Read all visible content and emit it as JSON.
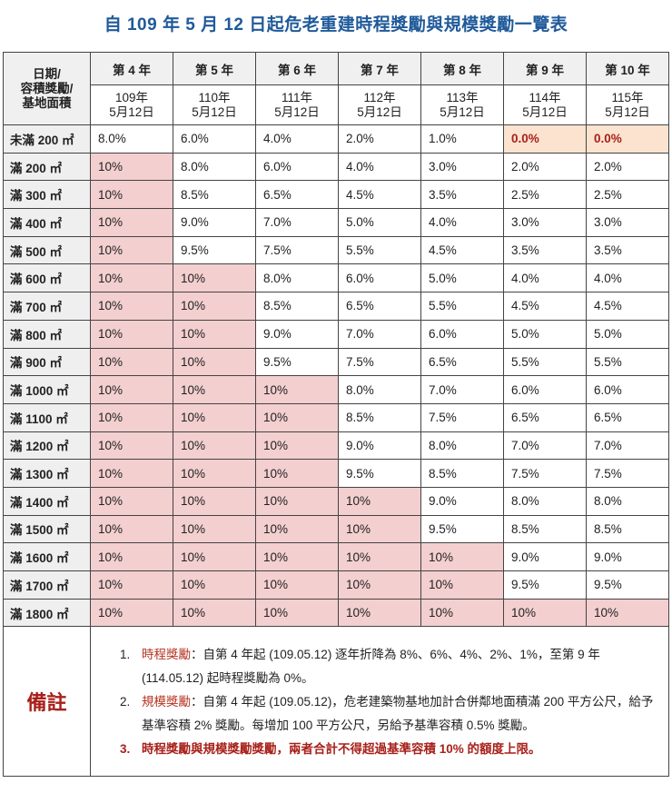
{
  "title": "自 109 年 5 月 12 日起危老重建時程獎勵與規模獎勵一覽表",
  "header": {
    "corner_lines": [
      "日期/",
      "容積獎勵/",
      "基地面積"
    ],
    "years": [
      "第 4 年",
      "第 5 年",
      "第 6 年",
      "第 7 年",
      "第 8 年",
      "第 9 年",
      "第 10 年"
    ],
    "dates": [
      [
        "109年",
        "5月12日"
      ],
      [
        "110年",
        "5月12日"
      ],
      [
        "111年",
        "5月12日"
      ],
      [
        "112年",
        "5月12日"
      ],
      [
        "113年",
        "5月12日"
      ],
      [
        "114年",
        "5月12日"
      ],
      [
        "115年",
        "5月12日"
      ]
    ]
  },
  "rows": [
    {
      "label": "未滿 200 ㎡",
      "values": [
        "8.0%",
        "6.0%",
        "4.0%",
        "2.0%",
        "1.0%",
        "0.0%",
        "0.0%"
      ]
    },
    {
      "label": "滿 200 ㎡",
      "values": [
        "10%",
        "8.0%",
        "6.0%",
        "4.0%",
        "3.0%",
        "2.0%",
        "2.0%"
      ]
    },
    {
      "label": "滿 300 ㎡",
      "values": [
        "10%",
        "8.5%",
        "6.5%",
        "4.5%",
        "3.5%",
        "2.5%",
        "2.5%"
      ]
    },
    {
      "label": "滿 400 ㎡",
      "values": [
        "10%",
        "9.0%",
        "7.0%",
        "5.0%",
        "4.0%",
        "3.0%",
        "3.0%"
      ]
    },
    {
      "label": "滿 500 ㎡",
      "values": [
        "10%",
        "9.5%",
        "7.5%",
        "5.5%",
        "4.5%",
        "3.5%",
        "3.5%"
      ]
    },
    {
      "label": "滿 600 ㎡",
      "values": [
        "10%",
        "10%",
        "8.0%",
        "6.0%",
        "5.0%",
        "4.0%",
        "4.0%"
      ]
    },
    {
      "label": "滿 700 ㎡",
      "values": [
        "10%",
        "10%",
        "8.5%",
        "6.5%",
        "5.5%",
        "4.5%",
        "4.5%"
      ]
    },
    {
      "label": "滿 800 ㎡",
      "values": [
        "10%",
        "10%",
        "9.0%",
        "7.0%",
        "6.0%",
        "5.0%",
        "5.0%"
      ]
    },
    {
      "label": "滿 900 ㎡",
      "values": [
        "10%",
        "10%",
        "9.5%",
        "7.5%",
        "6.5%",
        "5.5%",
        "5.5%"
      ]
    },
    {
      "label": "滿 1000 ㎡",
      "values": [
        "10%",
        "10%",
        "10%",
        "8.0%",
        "7.0%",
        "6.0%",
        "6.0%"
      ]
    },
    {
      "label": "滿 1100 ㎡",
      "values": [
        "10%",
        "10%",
        "10%",
        "8.5%",
        "7.5%",
        "6.5%",
        "6.5%"
      ]
    },
    {
      "label": "滿 1200 ㎡",
      "values": [
        "10%",
        "10%",
        "10%",
        "9.0%",
        "8.0%",
        "7.0%",
        "7.0%"
      ]
    },
    {
      "label": "滿 1300 ㎡",
      "values": [
        "10%",
        "10%",
        "10%",
        "9.5%",
        "8.5%",
        "7.5%",
        "7.5%"
      ]
    },
    {
      "label": "滿 1400 ㎡",
      "values": [
        "10%",
        "10%",
        "10%",
        "10%",
        "9.0%",
        "8.0%",
        "8.0%"
      ]
    },
    {
      "label": "滿 1500 ㎡",
      "values": [
        "10%",
        "10%",
        "10%",
        "10%",
        "9.5%",
        "8.5%",
        "8.5%"
      ]
    },
    {
      "label": "滿 1600 ㎡",
      "values": [
        "10%",
        "10%",
        "10%",
        "10%",
        "10%",
        "9.0%",
        "9.0%"
      ]
    },
    {
      "label": "滿 1700 ㎡",
      "values": [
        "10%",
        "10%",
        "10%",
        "10%",
        "10%",
        "9.5%",
        "9.5%"
      ]
    },
    {
      "label": "滿 1800 ㎡",
      "values": [
        "10%",
        "10%",
        "10%",
        "10%",
        "10%",
        "10%",
        "10%"
      ]
    }
  ],
  "notes": {
    "label": "備註",
    "items": [
      {
        "num": "1.",
        "key": "時程獎勵",
        "text": "：自第 4 年起 (109.05.12) 逐年折降為 8%、6%、4%、2%、1%，至第 9 年 (114.05.12) 起時程獎勵為 0%。"
      },
      {
        "num": "2.",
        "key": "規模獎勵",
        "text": "：自第 4 年起 (109.05.12)，危老建築物基地加計合併鄰地面積滿 200 平方公尺，給予基準容積 2% 獎勵。每增加 100 平方公尺，另給予基準容積 0.5% 獎勵。"
      },
      {
        "num": "3.",
        "key": "",
        "text": "時程獎勵與規模獎勵獎勵，兩者合計不得超過基準容積 10% 的額度上限。"
      }
    ]
  },
  "colors": {
    "title": "#1f5a9a",
    "cap_cell": "#f3cfd0",
    "zero_cell": "#fbe3cf",
    "accent_red": "#a8201a",
    "label_bg": "#efefef"
  }
}
